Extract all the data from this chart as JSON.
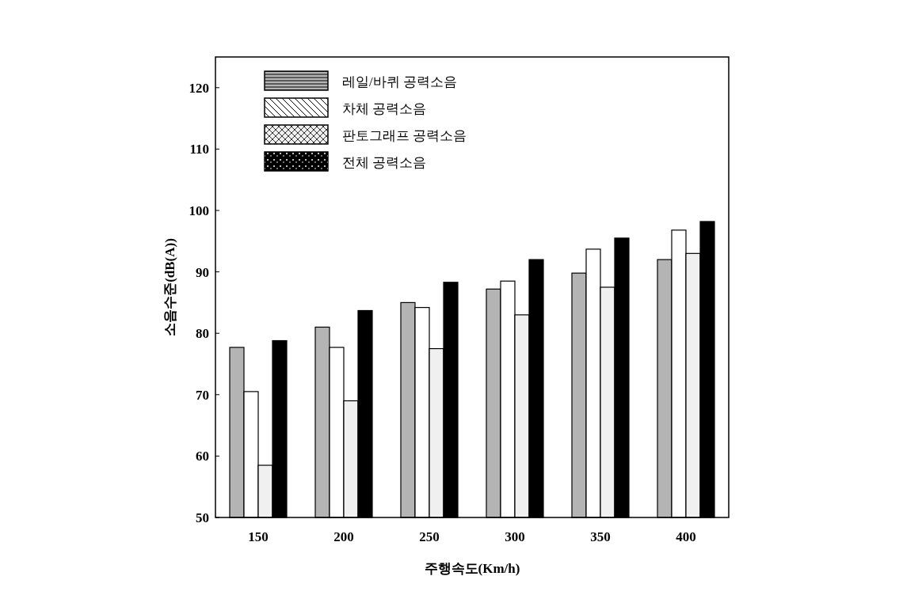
{
  "chart_data": {
    "type": "bar",
    "xlabel": "주행속도(Km/h)",
    "ylabel": "소음수준(dB(A))",
    "categories": [
      "150",
      "200",
      "250",
      "300",
      "350",
      "400"
    ],
    "ylim": [
      50,
      125
    ],
    "yticks": [
      50,
      60,
      70,
      80,
      90,
      100,
      110,
      120
    ],
    "legend": "top left",
    "series": [
      {
        "name": "레일/바퀴 공력소음",
        "color": "#b4b4b4",
        "values": [
          77.7,
          81.0,
          85.0,
          87.2,
          89.8,
          92.0
        ]
      },
      {
        "name": "차체 공력소음",
        "color": "#ffffff",
        "values": [
          70.5,
          77.7,
          84.2,
          88.5,
          93.7,
          96.8
        ]
      },
      {
        "name": "판토그래프 공력소음",
        "color": "#f0f0f0",
        "values": [
          58.5,
          69.0,
          77.5,
          83.0,
          87.5,
          93.0
        ]
      },
      {
        "name": "전체 공력소음",
        "color": "#000000",
        "values": [
          78.8,
          83.7,
          88.3,
          92.0,
          95.5,
          98.2
        ]
      }
    ]
  }
}
